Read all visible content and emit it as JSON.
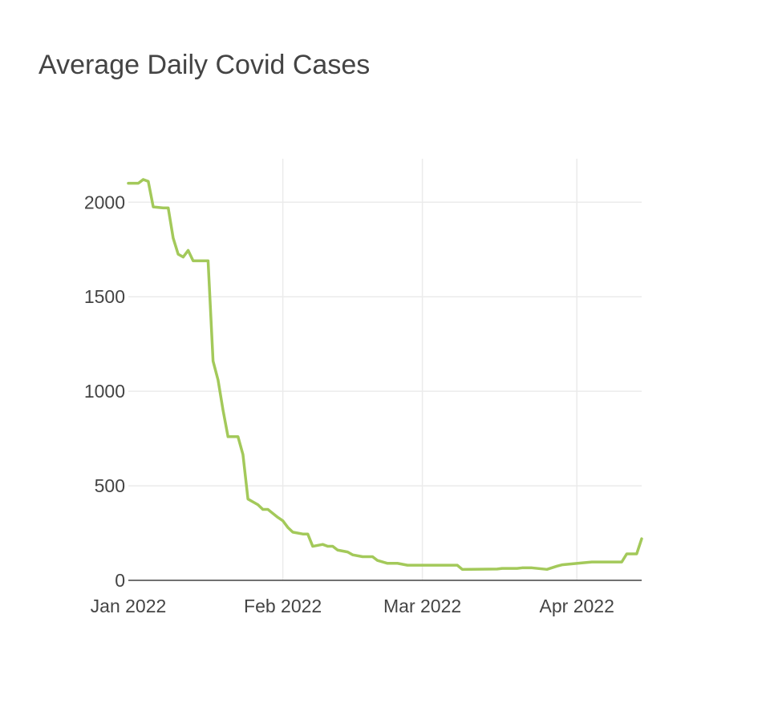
{
  "chart_data": {
    "type": "line",
    "title": "Average Daily Covid Cases",
    "xlabel": "",
    "ylabel": "",
    "x_axis": {
      "type": "date",
      "range": [
        "2022-01-01",
        "2022-04-14"
      ],
      "ticks": [
        {
          "value": "2022-01-01",
          "label": "Jan 2022"
        },
        {
          "value": "2022-02-01",
          "label": "Feb 2022"
        },
        {
          "value": "2022-03-01",
          "label": "Mar 2022"
        },
        {
          "value": "2022-04-01",
          "label": "Apr 2022"
        }
      ]
    },
    "y_axis": {
      "range": [
        0,
        2230
      ],
      "ticks": [
        0,
        500,
        1000,
        1500,
        2000
      ]
    },
    "grid": true,
    "legend": "none",
    "series": [
      {
        "color": "#a3c95a",
        "x": [
          "2022-01-01",
          "2022-01-02",
          "2022-01-03",
          "2022-01-04",
          "2022-01-05",
          "2022-01-06",
          "2022-01-08",
          "2022-01-09",
          "2022-01-10",
          "2022-01-11",
          "2022-01-12",
          "2022-01-13",
          "2022-01-14",
          "2022-01-15",
          "2022-01-17",
          "2022-01-18",
          "2022-01-19",
          "2022-01-20",
          "2022-01-21",
          "2022-01-22",
          "2022-01-23",
          "2022-01-24",
          "2022-01-25",
          "2022-01-26",
          "2022-01-27",
          "2022-01-28",
          "2022-01-29",
          "2022-01-31",
          "2022-02-01",
          "2022-02-02",
          "2022-02-03",
          "2022-02-05",
          "2022-02-06",
          "2022-02-07",
          "2022-02-09",
          "2022-02-10",
          "2022-02-11",
          "2022-02-12",
          "2022-02-14",
          "2022-02-15",
          "2022-02-17",
          "2022-02-19",
          "2022-02-20",
          "2022-02-22",
          "2022-02-24",
          "2022-02-26",
          "2022-03-01",
          "2022-03-08",
          "2022-03-09",
          "2022-03-16",
          "2022-03-17",
          "2022-03-20",
          "2022-03-21",
          "2022-03-23",
          "2022-03-26",
          "2022-03-28",
          "2022-03-29",
          "2022-04-02",
          "2022-04-04",
          "2022-04-05",
          "2022-04-10",
          "2022-04-11",
          "2022-04-12",
          "2022-04-13",
          "2022-04-14"
        ],
        "y": [
          2100,
          2100,
          2100,
          2120,
          2110,
          1975,
          1970,
          1970,
          1810,
          1725,
          1710,
          1745,
          1690,
          1690,
          1690,
          1160,
          1060,
          900,
          760,
          760,
          760,
          665,
          430,
          415,
          400,
          375,
          375,
          333,
          315,
          280,
          255,
          245,
          245,
          180,
          190,
          180,
          180,
          160,
          150,
          135,
          125,
          125,
          105,
          90,
          90,
          80,
          80,
          80,
          58,
          60,
          63,
          63,
          66,
          66,
          58,
          75,
          82,
          92,
          97,
          97,
          97,
          140,
          140,
          140,
          220
        ]
      }
    ]
  }
}
